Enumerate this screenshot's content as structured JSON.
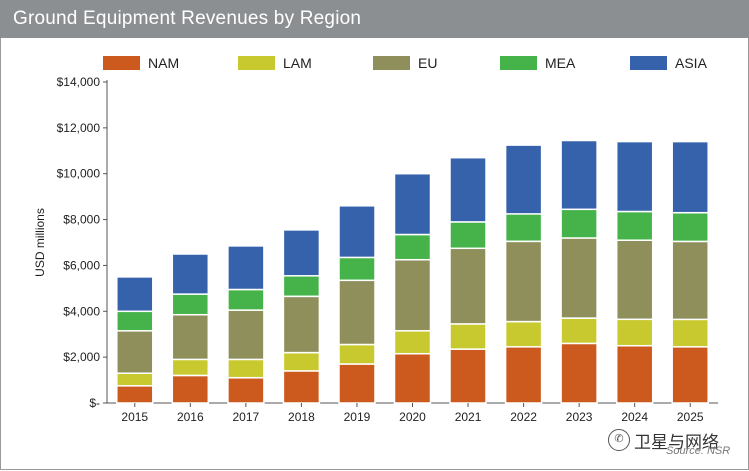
{
  "chart_data": {
    "type": "stacked-bar",
    "title": "Ground Equipment Revenues by Region",
    "ylabel": "USD millions",
    "xlabel": "",
    "ylim": [
      0,
      14000
    ],
    "yticks": [
      0,
      2000,
      4000,
      6000,
      8000,
      10000,
      12000,
      14000
    ],
    "ytick_labels": [
      "$-",
      "$2,000",
      "$4,000",
      "$6,000",
      "$8,000",
      "$10,000",
      "$12,000",
      "$14,000"
    ],
    "categories": [
      "2015",
      "2016",
      "2017",
      "2018",
      "2019",
      "2020",
      "2021",
      "2022",
      "2023",
      "2024",
      "2025"
    ],
    "series": [
      {
        "name": "NAM",
        "color": "#cc5a1f",
        "values": [
          750,
          1200,
          1100,
          1400,
          1700,
          2150,
          2350,
          2450,
          2600,
          2500,
          2450
        ]
      },
      {
        "name": "LAM",
        "color": "#c8c92e",
        "values": [
          550,
          700,
          800,
          800,
          850,
          1000,
          1100,
          1100,
          1100,
          1150,
          1200
        ]
      },
      {
        "name": "EU",
        "color": "#8f8f5c",
        "values": [
          1850,
          1950,
          2150,
          2450,
          2800,
          3100,
          3300,
          3500,
          3500,
          3450,
          3400
        ]
      },
      {
        "name": "MEA",
        "color": "#45b34a",
        "values": [
          850,
          900,
          900,
          900,
          1000,
          1100,
          1150,
          1200,
          1250,
          1250,
          1250
        ]
      },
      {
        "name": "ASIA",
        "color": "#3662ac",
        "values": [
          1500,
          1750,
          1900,
          2000,
          2250,
          2650,
          2800,
          3000,
          3000,
          3050,
          3100
        ]
      }
    ],
    "grid": false,
    "legend": "top"
  },
  "watermark": {
    "text": "卫星与网络",
    "icon": "wechat-icon"
  },
  "source": "Source: NSR"
}
